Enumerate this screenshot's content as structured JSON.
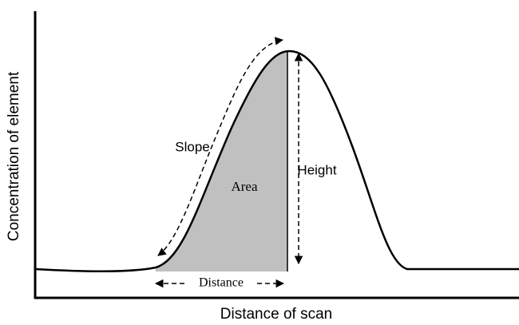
{
  "axes": {
    "y_label": "Concentration of element",
    "x_label": "Distance of scan"
  },
  "annotations": {
    "slope": "Slope",
    "area": "Area",
    "height": "Height",
    "distance": "Distance"
  }
}
